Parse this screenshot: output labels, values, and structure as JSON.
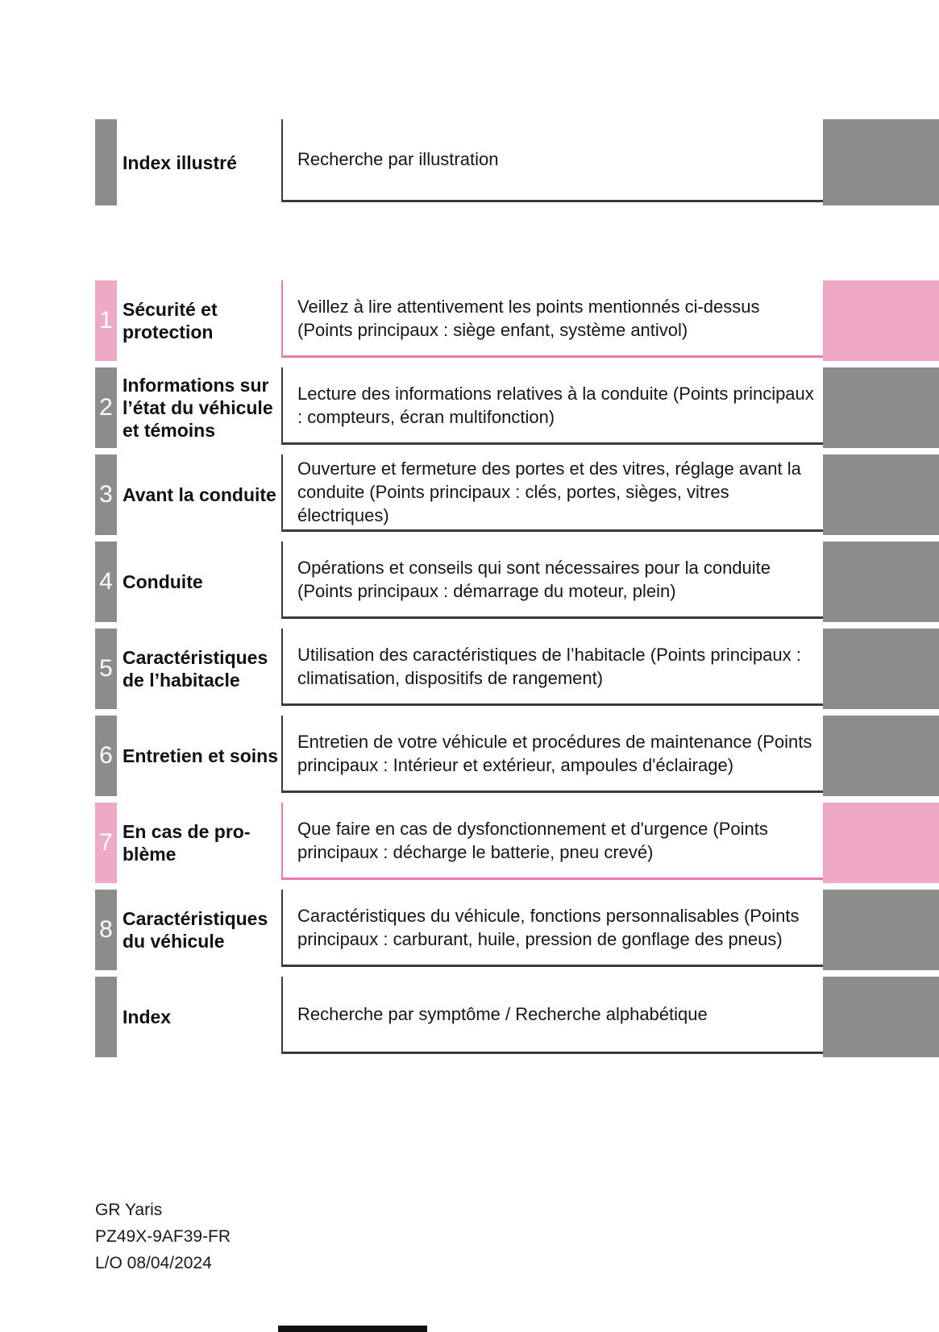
{
  "colors": {
    "tab_gray": "#8c8c8a",
    "tab_pink": "#eeaac4",
    "border_pink": "#e87ab2",
    "border_dark": "#3a3a3a"
  },
  "toc": {
    "header": {
      "number": "",
      "title": "Index illustré",
      "description": "Recherche par illustration",
      "accent": "gray"
    },
    "rows": [
      {
        "number": "1",
        "title": "Sécurité et\nprotection",
        "description": "Veillez à lire attentivement les points mentionnés ci-dessus (Points principaux : siège enfant, système antivol)",
        "accent": "pink"
      },
      {
        "number": "2",
        "title": "Informations sur\nl’état du véhicule\net témoins",
        "description": "Lecture des informations relatives à la conduite (Points principaux : compteurs, écran multifonction)",
        "accent": "gray"
      },
      {
        "number": "3",
        "title": "Avant la conduite",
        "description": "Ouverture et fermeture des portes et des vitres, réglage avant la conduite (Points principaux : clés, portes, sièges, vitres électriques)",
        "accent": "gray"
      },
      {
        "number": "4",
        "title": "Conduite",
        "description": "Opérations et conseils qui sont nécessaires pour la conduite (Points principaux : démarrage du moteur, plein)",
        "accent": "gray"
      },
      {
        "number": "5",
        "title": "Caractéristiques\nde l’habitacle",
        "description": "Utilisation des caractéristiques de l’habitacle (Points principaux : climatisation, dispositifs de rangement)",
        "accent": "gray"
      },
      {
        "number": "6",
        "title": "Entretien et soins",
        "description": "Entretien de votre véhicule et procédures de maintenance (Points principaux : Intérieur et extérieur, ampoules d'éclairage)",
        "accent": "gray"
      },
      {
        "number": "7",
        "title": "En cas de pro-\nblème",
        "description": "Que faire en cas de dysfonctionnement et d'urgence (Points principaux : décharge le batterie, pneu crevé)",
        "accent": "pink"
      },
      {
        "number": "8",
        "title": "Caractéristiques\ndu véhicule",
        "description": "Caractéristiques du véhicule, fonctions personnalisables (Points principaux : carburant, huile, pression de gonflage des pneus)",
        "accent": "gray"
      },
      {
        "number": "",
        "title": "Index",
        "description": "Recherche par symptôme / Recherche alphabétique",
        "accent": "gray"
      }
    ]
  },
  "footer": {
    "model": "GR Yaris",
    "part_number": "PZ49X-9AF39-FR",
    "lo_date": "L/O 08/04/2024"
  }
}
